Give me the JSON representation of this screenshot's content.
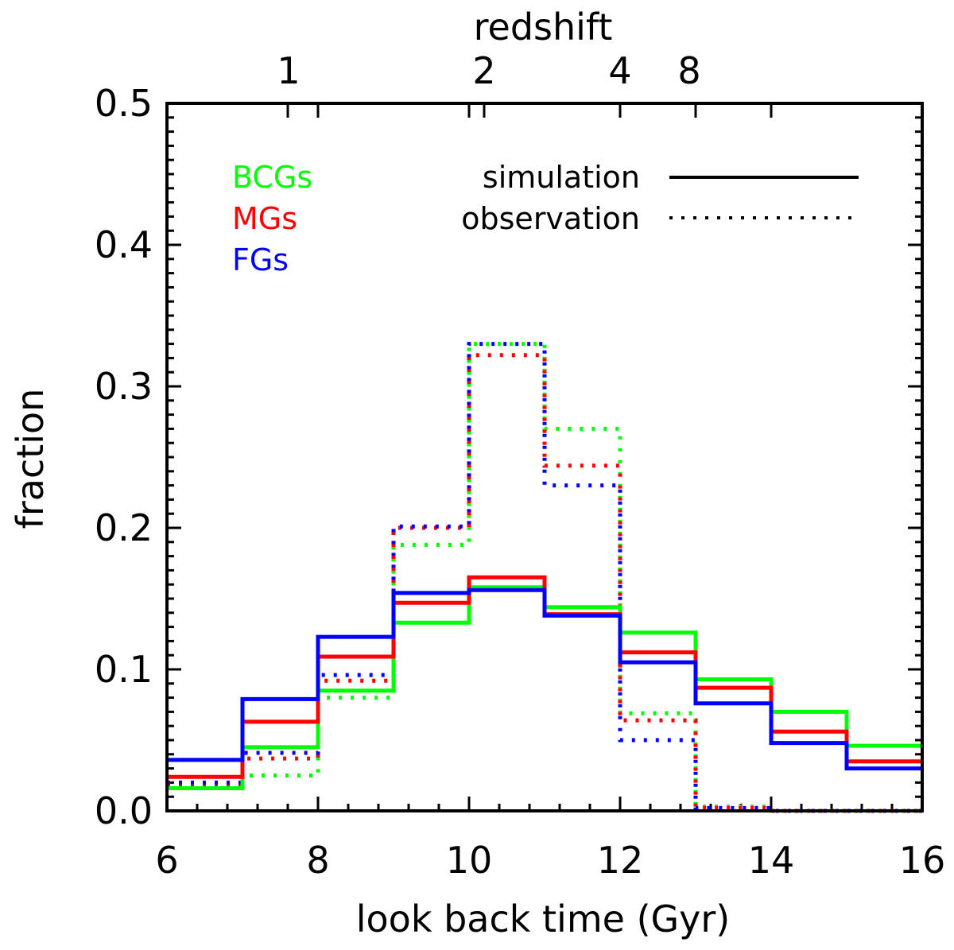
{
  "chart_data": {
    "type": "step-histogram",
    "xlabel": "look back time (Gyr)",
    "ylabel": "fraction",
    "top_xlabel": "redshift",
    "xlim": [
      6,
      16
    ],
    "ylim": [
      0,
      0.5
    ],
    "x_ticks": [
      6,
      8,
      10,
      12,
      14,
      16
    ],
    "x_tick_labels": [
      "6",
      "8",
      "10",
      "12",
      "14",
      "16"
    ],
    "y_ticks": [
      0.0,
      0.1,
      0.2,
      0.3,
      0.4,
      0.5
    ],
    "y_tick_labels": [
      "0.0",
      "0.1",
      "0.2",
      "0.3",
      "0.4",
      "0.5"
    ],
    "top_ticks": [
      {
        "label": "1",
        "lookback": 7.6
      },
      {
        "label": "2",
        "lookback": 10.2
      },
      {
        "label": "4",
        "lookback": 12.0
      },
      {
        "label": "8",
        "lookback": 13.0
      }
    ],
    "bin_edges": [
      6,
      7,
      8,
      9,
      10,
      11,
      12,
      13,
      14,
      15,
      16
    ],
    "series": [
      {
        "name": "BCGs simulation",
        "group": "BCGs",
        "kind": "simulation",
        "color": "#00ff00",
        "values": [
          0.016,
          0.045,
          0.085,
          0.133,
          0.158,
          0.144,
          0.126,
          0.093,
          0.07,
          0.046
        ]
      },
      {
        "name": "MGs simulation",
        "group": "MGs",
        "kind": "simulation",
        "color": "#ff0000",
        "values": [
          0.024,
          0.063,
          0.109,
          0.147,
          0.165,
          0.139,
          0.112,
          0.087,
          0.056,
          0.035
        ]
      },
      {
        "name": "FGs simulation",
        "group": "FGs",
        "kind": "simulation",
        "color": "#0000ff",
        "values": [
          0.036,
          0.079,
          0.123,
          0.154,
          0.156,
          0.138,
          0.105,
          0.076,
          0.048,
          0.03
        ]
      },
      {
        "name": "BCGs observation",
        "group": "BCGs",
        "kind": "observation",
        "color": "#00ff00",
        "values": [
          0.016,
          0.025,
          0.08,
          0.188,
          0.33,
          0.27,
          0.069,
          0.003,
          0.0,
          0.0
        ]
      },
      {
        "name": "MGs observation",
        "group": "MGs",
        "kind": "observation",
        "color": "#ff0000",
        "values": [
          0.018,
          0.037,
          0.092,
          0.2,
          0.322,
          0.244,
          0.064,
          0.002,
          0.0,
          0.0
        ]
      },
      {
        "name": "FGs observation",
        "group": "FGs",
        "kind": "observation",
        "color": "#0000ff",
        "values": [
          0.02,
          0.041,
          0.096,
          0.201,
          0.33,
          0.23,
          0.05,
          0.002,
          0.0,
          0.0
        ]
      }
    ],
    "legend_groups": [
      {
        "label": "BCGs",
        "color": "#00ff00"
      },
      {
        "label": "MGs",
        "color": "#ff0000"
      },
      {
        "label": "FGs",
        "color": "#0000ff"
      }
    ],
    "legend_styles": [
      {
        "label": "simulation",
        "dash": "solid"
      },
      {
        "label": "observation",
        "dash": "dotted"
      }
    ]
  }
}
